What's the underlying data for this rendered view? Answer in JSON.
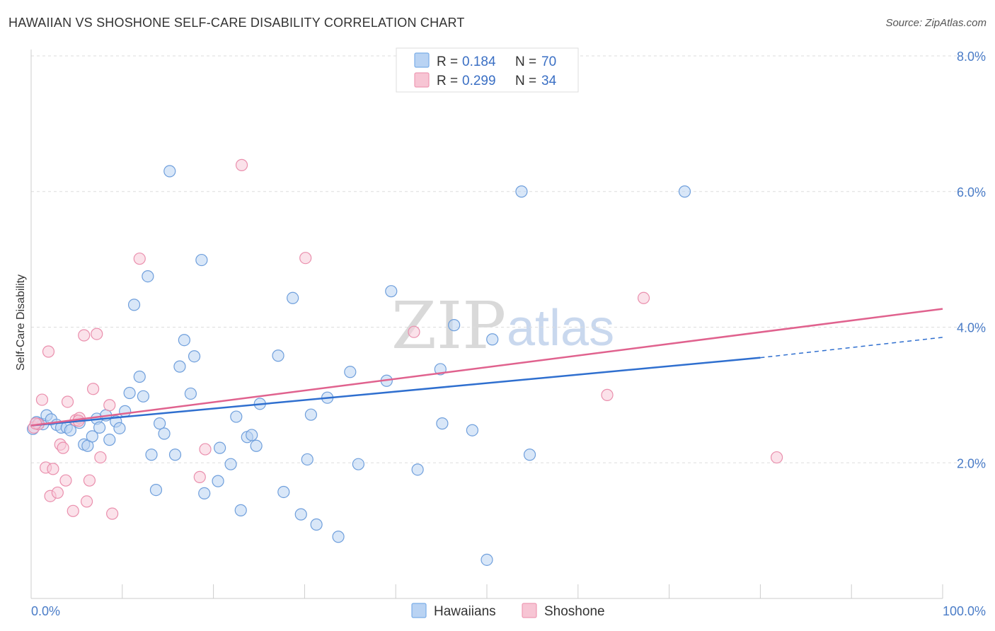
{
  "title": "HAWAIIAN VS SHOSHONE SELF-CARE DISABILITY CORRELATION CHART",
  "source": "Source: ZipAtlas.com",
  "watermark": {
    "zip": "ZIP",
    "atlas": "atlas"
  },
  "legend": {
    "rows": [
      {
        "r_label": "R = ",
        "r_value": "0.184",
        "n_label": "N = ",
        "n_value": "70",
        "color": "#7baee8",
        "fill": "#b9d3f3"
      },
      {
        "r_label": "R = ",
        "r_value": "0.299",
        "n_label": "N = ",
        "n_value": "34",
        "color": "#ee9ab4",
        "fill": "#f7c5d4"
      }
    ]
  },
  "colors": {
    "blue_stroke": "#6f9fdc",
    "blue_fill": "#b9d3f3",
    "blue_line": "#2f6fcf",
    "pink_stroke": "#ea8fad",
    "pink_fill": "#f8cbd8",
    "pink_line": "#e0628e",
    "tick_text": "#4a7cc7",
    "grid": "#dddddd"
  },
  "chart_data": {
    "type": "scatter",
    "title": "HAWAIIAN VS SHOSHONE SELF-CARE DISABILITY CORRELATION CHART",
    "xlabel": "",
    "ylabel": "Self-Care Disability",
    "xlim": [
      0,
      100
    ],
    "ylim": [
      0,
      8.0
    ],
    "x_tick_labels": [
      "0.0%",
      "100.0%"
    ],
    "y_ticks": [
      2.0,
      4.0,
      6.0,
      8.0
    ],
    "y_tick_labels": [
      "2.0%",
      "4.0%",
      "6.0%",
      "8.0%"
    ],
    "grid": "horizontal dashed",
    "legend_placement": "top-center and bottom",
    "series": [
      {
        "name": "Hawaiians",
        "color": "#6f9fdc",
        "trend": {
          "x": [
            0,
            80
          ],
          "y": [
            2.55,
            3.55
          ],
          "dashed_to": [
            100,
            3.85
          ]
        },
        "points": [
          [
            0.2,
            2.5
          ],
          [
            0.8,
            2.58
          ],
          [
            1.3,
            2.57
          ],
          [
            1.7,
            2.7
          ],
          [
            2.2,
            2.64
          ],
          [
            2.8,
            2.56
          ],
          [
            3.3,
            2.52
          ],
          [
            3.9,
            2.52
          ],
          [
            4.3,
            2.48
          ],
          [
            5.3,
            2.59
          ],
          [
            5.8,
            2.27
          ],
          [
            6.2,
            2.25
          ],
          [
            6.7,
            2.39
          ],
          [
            7.2,
            2.65
          ],
          [
            7.5,
            2.52
          ],
          [
            8.2,
            2.7
          ],
          [
            8.6,
            2.34
          ],
          [
            9.3,
            2.61
          ],
          [
            9.7,
            2.51
          ],
          [
            10.3,
            2.76
          ],
          [
            10.8,
            3.03
          ],
          [
            11.3,
            4.33
          ],
          [
            11.9,
            3.27
          ],
          [
            12.3,
            2.98
          ],
          [
            12.8,
            4.75
          ],
          [
            13.2,
            2.12
          ],
          [
            13.7,
            1.6
          ],
          [
            14.1,
            2.58
          ],
          [
            14.6,
            2.43
          ],
          [
            15.2,
            6.3
          ],
          [
            15.8,
            2.12
          ],
          [
            16.3,
            3.42
          ],
          [
            16.8,
            3.81
          ],
          [
            17.5,
            3.02
          ],
          [
            17.9,
            3.57
          ],
          [
            18.7,
            4.99
          ],
          [
            19.0,
            1.55
          ],
          [
            20.7,
            2.22
          ],
          [
            20.5,
            1.73
          ],
          [
            21.9,
            1.98
          ],
          [
            22.5,
            2.68
          ],
          [
            23.0,
            1.3
          ],
          [
            23.7,
            2.38
          ],
          [
            24.2,
            2.41
          ],
          [
            24.7,
            2.25
          ],
          [
            25.1,
            2.87
          ],
          [
            27.1,
            3.58
          ],
          [
            27.7,
            1.57
          ],
          [
            28.7,
            4.43
          ],
          [
            29.6,
            1.24
          ],
          [
            30.3,
            2.05
          ],
          [
            30.7,
            2.71
          ],
          [
            31.3,
            1.09
          ],
          [
            32.5,
            2.96
          ],
          [
            33.7,
            0.91
          ],
          [
            35.0,
            3.34
          ],
          [
            35.9,
            1.98
          ],
          [
            39.0,
            3.21
          ],
          [
            39.5,
            4.53
          ],
          [
            42.4,
            1.9
          ],
          [
            44.9,
            3.38
          ],
          [
            45.1,
            2.58
          ],
          [
            46.4,
            4.03
          ],
          [
            48.4,
            2.48
          ],
          [
            50.0,
            0.57
          ],
          [
            50.6,
            3.82
          ],
          [
            53.8,
            6.0
          ],
          [
            54.7,
            2.12
          ],
          [
            71.7,
            6.0
          ],
          [
            0.6,
            2.6
          ]
        ]
      },
      {
        "name": "Shoshone",
        "color": "#ea8fad",
        "trend": {
          "x": [
            0,
            100
          ],
          "y": [
            2.55,
            4.27
          ]
        },
        "points": [
          [
            0.3,
            2.52
          ],
          [
            0.8,
            2.57
          ],
          [
            1.2,
            2.93
          ],
          [
            1.6,
            1.93
          ],
          [
            1.9,
            3.64
          ],
          [
            2.1,
            1.51
          ],
          [
            2.4,
            1.91
          ],
          [
            2.9,
            1.56
          ],
          [
            3.2,
            2.27
          ],
          [
            3.5,
            2.22
          ],
          [
            3.8,
            1.74
          ],
          [
            4.0,
            2.9
          ],
          [
            4.6,
            1.29
          ],
          [
            4.9,
            2.63
          ],
          [
            5.3,
            2.66
          ],
          [
            5.8,
            3.88
          ],
          [
            6.1,
            1.43
          ],
          [
            6.4,
            1.74
          ],
          [
            6.8,
            3.09
          ],
          [
            7.2,
            3.9
          ],
          [
            7.6,
            2.08
          ],
          [
            8.6,
            2.85
          ],
          [
            8.9,
            1.25
          ],
          [
            11.9,
            5.01
          ],
          [
            18.5,
            1.79
          ],
          [
            19.1,
            2.2
          ],
          [
            23.1,
            6.39
          ],
          [
            30.1,
            5.02
          ],
          [
            42.0,
            3.93
          ],
          [
            63.2,
            3.0
          ],
          [
            67.2,
            4.43
          ],
          [
            81.8,
            2.08
          ],
          [
            5.2,
            2.62
          ],
          [
            0.5,
            2.58
          ]
        ]
      }
    ]
  },
  "axis": {
    "ylabel": "Self-Care Disability",
    "x_left": "0.0%",
    "x_right": "100.0%",
    "y_labels": [
      "8.0%",
      "6.0%",
      "4.0%",
      "2.0%"
    ]
  },
  "bottom_legend": [
    {
      "label": "Hawaiians",
      "stroke": "#7baee8",
      "fill": "#b9d3f3"
    },
    {
      "label": "Shoshone",
      "stroke": "#ee9ab4",
      "fill": "#f7c5d4"
    }
  ]
}
